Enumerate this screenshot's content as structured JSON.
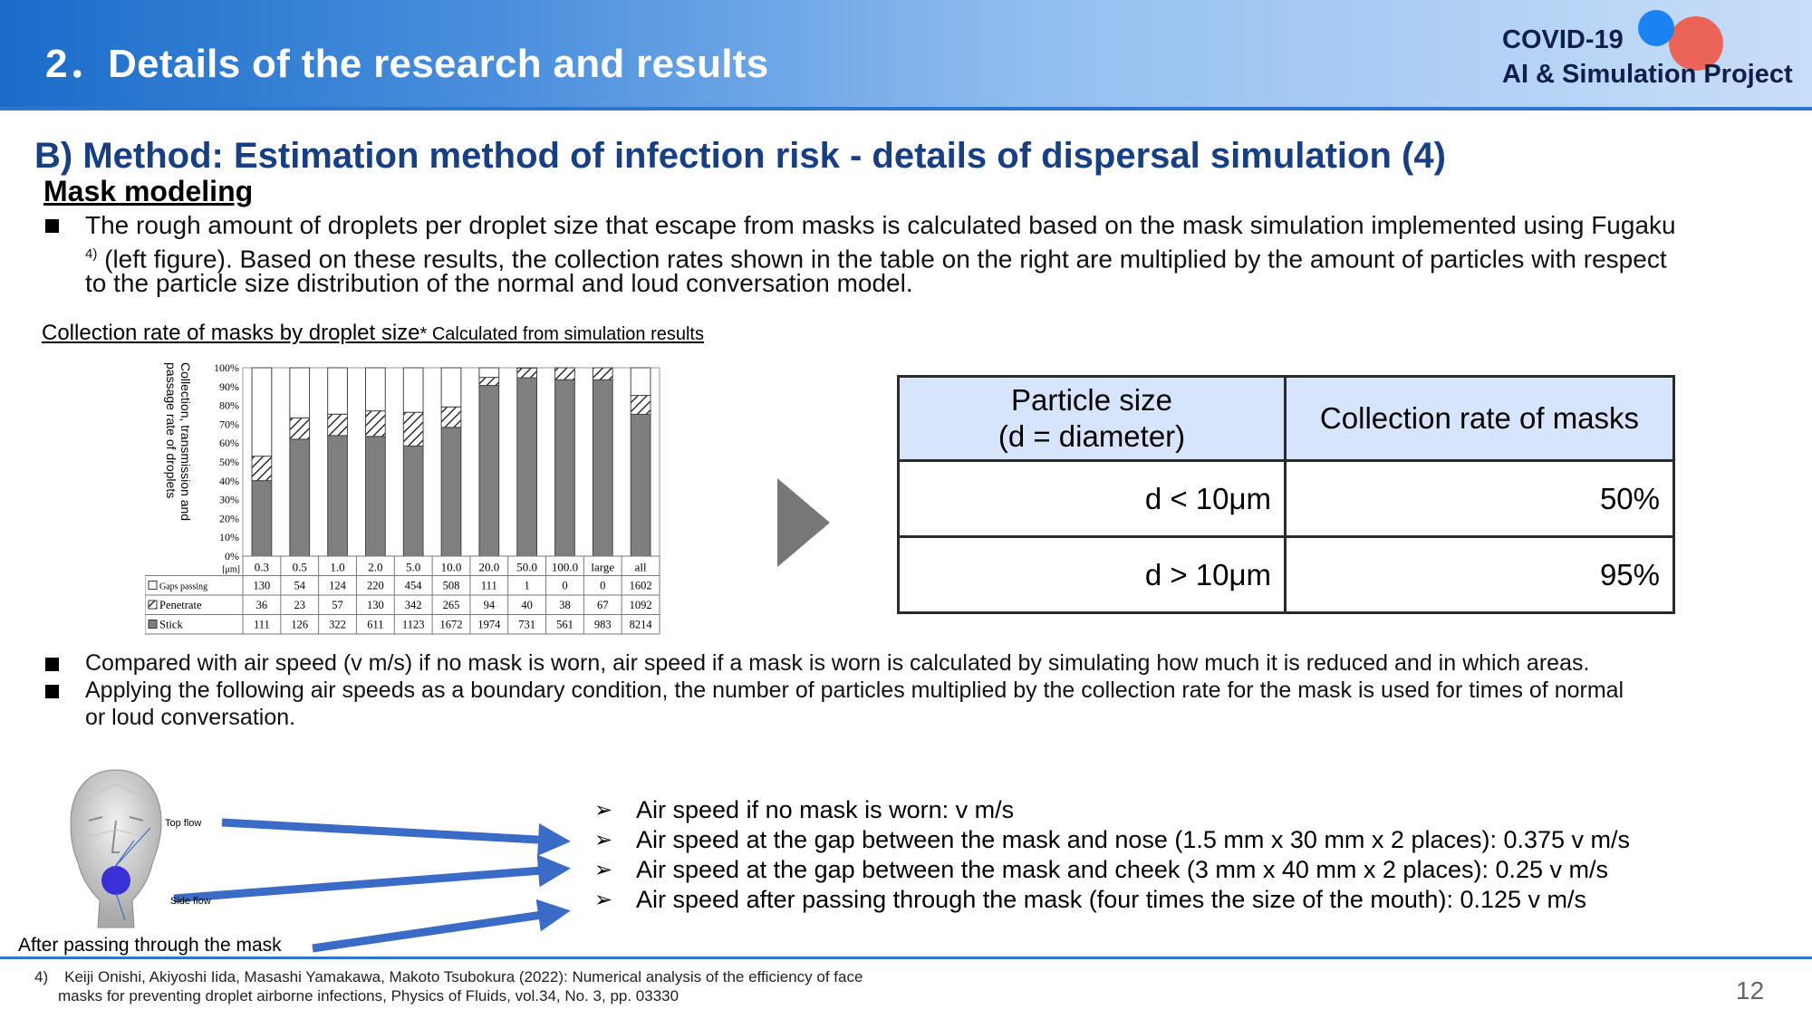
{
  "header": {
    "title": "2．Details of the research and results",
    "logo_line1": "COVID-19",
    "logo_line2": "AI & Simulation Project",
    "colors": {
      "accent": "#2e75d0",
      "title_text": "#173f82",
      "logo_red": "#ef5a4a",
      "logo_blue": "#1a82f2"
    }
  },
  "section_title": "B) Method: Estimation method of infection risk - details of dispersal simulation (4)",
  "subhead": "Mask modeling",
  "intro": {
    "line1": "The rough amount of droplets per droplet size that escape from masks is calculated based on the mask simulation implemented using Fugaku",
    "ref_sup": "4)",
    "line2": " (left figure). Based on these results, the collection rates shown in the table on the right are multiplied by the amount of particles with respect",
    "line3": "to the particle size distribution of the normal and loud conversation model."
  },
  "caption": {
    "main": "Collection rate of masks by droplet size",
    "note": "* Calculated from simulation results"
  },
  "chart_data": {
    "type": "bar",
    "stacked": true,
    "normalized_percent": true,
    "ylabel": "Collection, transmission and passage rate of droplets",
    "yticks": [
      "100%",
      "90%",
      "80%",
      "70%",
      "60%",
      "50%",
      "40%",
      "30%",
      "20%",
      "10%",
      "0%"
    ],
    "xunit": "[μm]",
    "categories": [
      "0.3",
      "0.5",
      "1.0",
      "2.0",
      "5.0",
      "10.0",
      "20.0",
      "50.0",
      "100.0",
      "large",
      "all"
    ],
    "series": [
      {
        "name": "Gaps passing",
        "pattern": "white",
        "values": [
          130,
          54,
          124,
          220,
          454,
          508,
          111,
          1,
          0,
          0,
          1602
        ]
      },
      {
        "name": "Penetrate",
        "pattern": "hatched",
        "values": [
          36,
          23,
          57,
          130,
          342,
          265,
          94,
          40,
          38,
          67,
          1092
        ]
      },
      {
        "name": "Stick",
        "pattern": "gray",
        "values": [
          111,
          126,
          322,
          611,
          1123,
          1672,
          1974,
          731,
          561,
          983,
          8214
        ]
      }
    ],
    "legend_placement": "table-left",
    "colors": {
      "stick": "#7f7f7f",
      "gaps": "#ffffff",
      "hatch": "#000000"
    }
  },
  "rate_table": {
    "header_col1_line1": "Particle size",
    "header_col1_line2": "(d = diameter)",
    "header_col2": "Collection rate of masks",
    "rows": [
      {
        "size": "d < 10μm",
        "rate": "50%"
      },
      {
        "size": "d > 10μm",
        "rate": "95%"
      }
    ]
  },
  "bullets2": [
    "Compared with air speed (v m/s) if no mask is worn, air speed if a mask is worn is calculated by simulating how much it is reduced and in which areas.",
    "Applying the following air speeds as a boundary condition, the number of particles multiplied by the collection rate for the mask is used for times of normal",
    "or loud conversation."
  ],
  "figure_labels": {
    "top_flow": "Top flow",
    "side_flow": "Side flow",
    "after_mask": "After passing through the mask"
  },
  "air_list": [
    "Air speed if no mask is worn: v m/s",
    "Air speed at the gap between the mask and nose (1.5 mm x 30 mm x 2 places): 0.375 v m/s",
    "Air speed at the gap between the mask and cheek (3 mm x 40 mm x 2 places): 0.25 v m/s",
    "Air speed after passing through the mask (four times the size of the mouth): 0.125 v m/s"
  ],
  "footnote": {
    "marker": "4)",
    "line1": "Keiji Onishi, Akiyoshi Iida, Masashi Yamakawa, Makoto Tsubokura (2022): Numerical analysis of the efficiency of face",
    "line2": "masks for preventing droplet airborne infections, Physics of Fluids, vol.34, No. 3, pp. 03330"
  },
  "page_number": "12"
}
